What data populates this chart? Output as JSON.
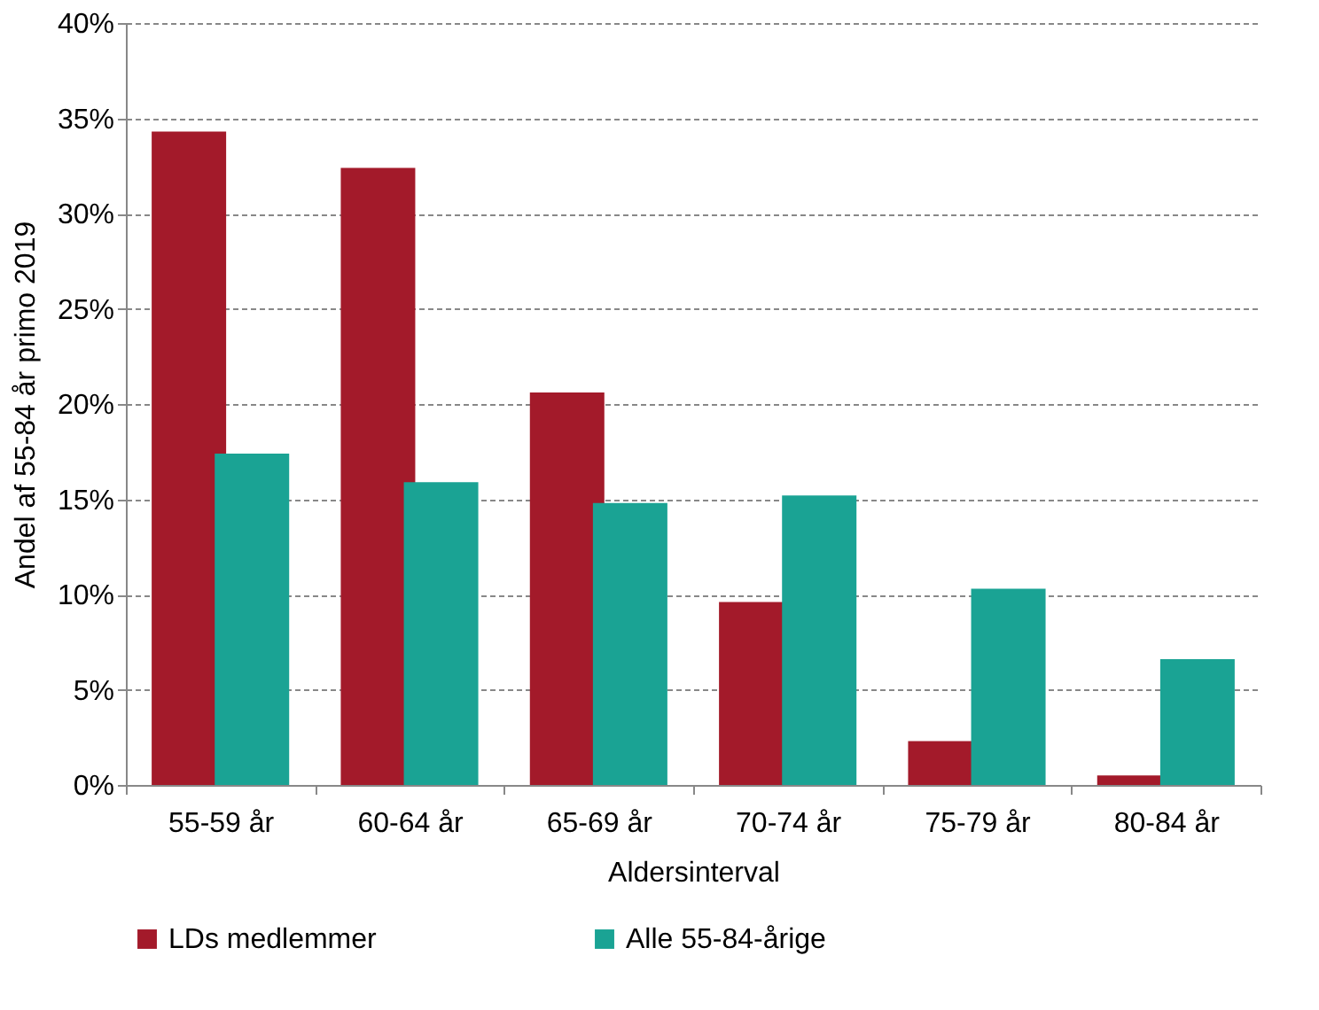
{
  "chart_data": {
    "type": "bar",
    "xlabel": "Aldersinterval",
    "ylabel": "Andel af 55-84 år primo 2019",
    "categories": [
      "55-59 år",
      "60-64 år",
      "65-69 år",
      "70-74 år",
      "75-79 år",
      "80-84 år"
    ],
    "series": [
      {
        "name": "LDs medlemmer",
        "color": "#a31a2a",
        "values": [
          34.3,
          32.4,
          20.6,
          9.6,
          2.3,
          0.5
        ]
      },
      {
        "name": "Alle 55-84-årige",
        "color": "#1aa394",
        "values": [
          17.4,
          15.9,
          14.8,
          15.2,
          10.3,
          6.6
        ]
      }
    ],
    "ylim": [
      0,
      40
    ],
    "yticks": [
      {
        "value": 0,
        "label": "0%"
      },
      {
        "value": 5,
        "label": "5%"
      },
      {
        "value": 10,
        "label": "10%"
      },
      {
        "value": 15,
        "label": "15%"
      },
      {
        "value": 20,
        "label": "20%"
      },
      {
        "value": 25,
        "label": "25%"
      },
      {
        "value": 30,
        "label": "30%"
      },
      {
        "value": 35,
        "label": "35%"
      },
      {
        "value": 40,
        "label": "40%"
      }
    ],
    "grid": "y",
    "legend": "bottom"
  }
}
